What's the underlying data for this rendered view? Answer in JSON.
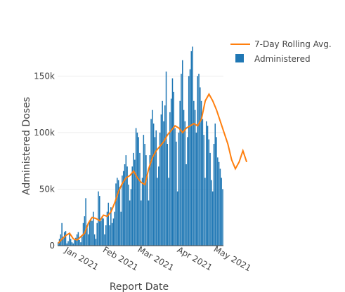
{
  "chart_data": {
    "type": "bar",
    "xlabel": "Report Date",
    "ylabel": "Administered Doses",
    "x_start": "2020-12-14",
    "x_ticks": [
      "Jan 2021",
      "Feb 2021",
      "Mar 2021",
      "Apr 2021",
      "May 2021"
    ],
    "x_tick_dates": [
      "2021-01-01",
      "2021-02-01",
      "2021-03-01",
      "2021-04-01",
      "2021-05-01"
    ],
    "y_ticks": [
      "0",
      "50k",
      "100k",
      "150k"
    ],
    "y_tick_values": [
      0,
      50000,
      100000,
      150000
    ],
    "ylim": [
      0,
      180000
    ],
    "grid": true,
    "legend_position": "top-right",
    "series": [
      {
        "name": "Administered",
        "type": "bar",
        "color": "#1f77b4",
        "values": [
          3000,
          6000,
          10000,
          20000,
          8000,
          12000,
          13000,
          2000,
          4000,
          10000,
          6000,
          3000,
          2000,
          5000,
          7000,
          10000,
          12000,
          5000,
          3000,
          8000,
          20000,
          26000,
          42000,
          18000,
          10000,
          22000,
          24000,
          22000,
          30000,
          10000,
          6000,
          20000,
          48000,
          44000,
          22000,
          26000,
          24000,
          10000,
          18000,
          30000,
          38000,
          18000,
          34000,
          20000,
          24000,
          30000,
          55000,
          60000,
          58000,
          52000,
          30000,
          62000,
          66000,
          72000,
          80000,
          70000,
          54000,
          40000,
          50000,
          70000,
          82000,
          76000,
          104000,
          100000,
          96000,
          82000,
          40000,
          60000,
          98000,
          90000,
          80000,
          62000,
          40000,
          80000,
          112000,
          120000,
          108000,
          96000,
          102000,
          60000,
          70000,
          100000,
          116000,
          128000,
          110000,
          124000,
          154000,
          90000,
          60000,
          118000,
          130000,
          148000,
          136000,
          104000,
          92000,
          48000,
          100000,
          128000,
          152000,
          164000,
          120000,
          110000,
          72000,
          96000,
          150000,
          156000,
          172000,
          176000,
          128000,
          120000,
          100000,
          150000,
          152000,
          140000,
          128000,
          112000,
          98000,
          60000,
          110000,
          106000,
          94000,
          82000,
          58000,
          48000,
          90000,
          108000,
          96000,
          78000,
          74000,
          68000,
          60000,
          50000
        ]
      },
      {
        "name": "7-Day Rolling Avg.",
        "type": "line",
        "color": "#ff7f0e",
        "points": [
          [
            0,
            2000
          ],
          [
            3,
            6000
          ],
          [
            6,
            9000
          ],
          [
            9,
            11000
          ],
          [
            12,
            6000
          ],
          [
            15,
            5000
          ],
          [
            18,
            8000
          ],
          [
            21,
            11000
          ],
          [
            24,
            20000
          ],
          [
            27,
            25000
          ],
          [
            30,
            24000
          ],
          [
            33,
            22000
          ],
          [
            36,
            27000
          ],
          [
            39,
            26000
          ],
          [
            42,
            30000
          ],
          [
            45,
            38000
          ],
          [
            48,
            48000
          ],
          [
            51,
            55000
          ],
          [
            54,
            60000
          ],
          [
            57,
            62000
          ],
          [
            60,
            66000
          ],
          [
            63,
            60000
          ],
          [
            66,
            56000
          ],
          [
            69,
            54000
          ],
          [
            72,
            68000
          ],
          [
            75,
            78000
          ],
          [
            78,
            84000
          ],
          [
            81,
            88000
          ],
          [
            84,
            92000
          ],
          [
            87,
            98000
          ],
          [
            90,
            102000
          ],
          [
            93,
            106000
          ],
          [
            96,
            104000
          ],
          [
            99,
            100000
          ],
          [
            102,
            104000
          ],
          [
            105,
            106000
          ],
          [
            108,
            108000
          ],
          [
            111,
            106000
          ],
          [
            114,
            112000
          ],
          [
            117,
            128000
          ],
          [
            120,
            134000
          ],
          [
            123,
            128000
          ],
          [
            126,
            120000
          ],
          [
            129,
            110000
          ],
          [
            132,
            100000
          ],
          [
            135,
            90000
          ],
          [
            138,
            76000
          ],
          [
            141,
            68000
          ],
          [
            144,
            74000
          ],
          [
            147,
            84000
          ],
          [
            150,
            74000
          ]
        ]
      }
    ]
  }
}
